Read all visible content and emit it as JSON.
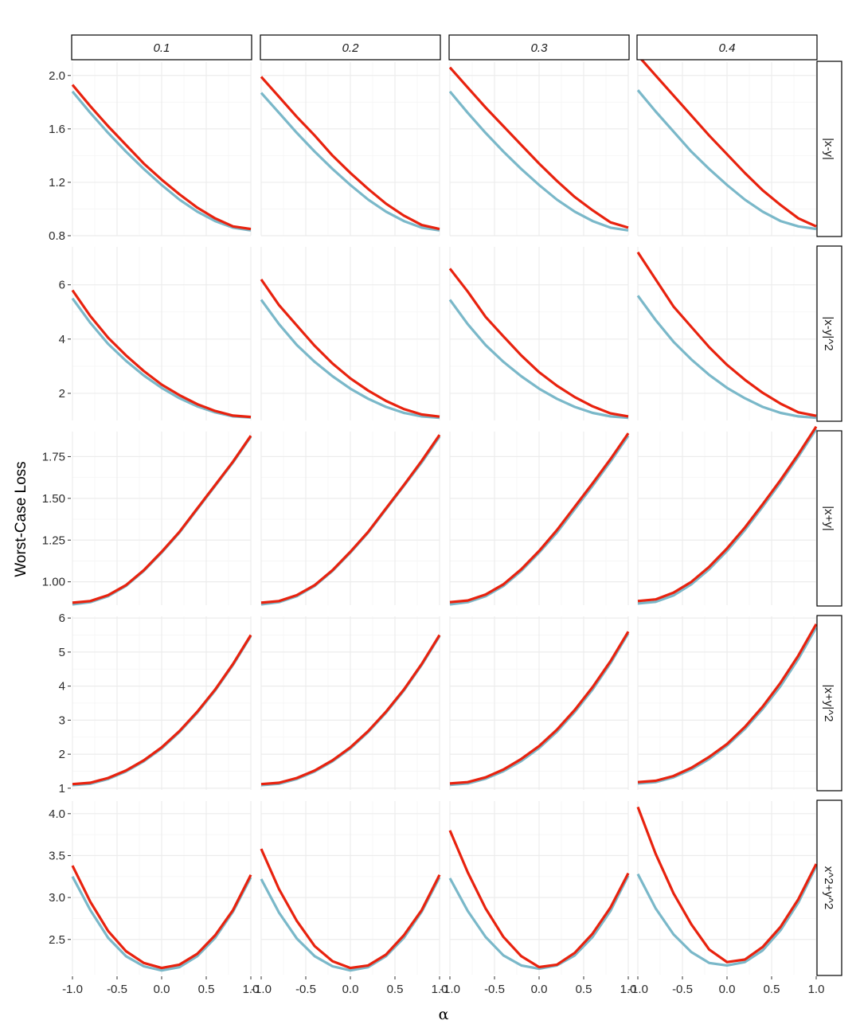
{
  "chart_data": {
    "type": "line",
    "facet_layout": "grid",
    "xlabel": "α",
    "ylabel": "Worst-Case Loss",
    "x": [
      -1.0,
      -0.8,
      -0.6,
      -0.4,
      -0.2,
      0.0,
      0.2,
      0.4,
      0.6,
      0.8,
      1.0
    ],
    "xlim": [
      -1.0,
      1.0
    ],
    "xticks": [
      -1.0,
      -0.5,
      0.0,
      0.5,
      1.0
    ],
    "xtick_labels": [
      "-1.0",
      "-0.5",
      "0.0",
      "0.5",
      "1.0"
    ],
    "colors": {
      "series_1": "#e8220e",
      "series_2": "#7ab8c9"
    },
    "columns": [
      "0.1",
      "0.2",
      "0.3",
      "0.4"
    ],
    "rows": [
      {
        "label": "|x-y|",
        "ylim": [
          0.8,
          2.1
        ],
        "yticks": [
          0.8,
          1.2,
          1.6,
          2.0
        ],
        "ytick_labels": [
          "0.8",
          "1.2",
          "1.6",
          "2.0"
        ],
        "panels": [
          {
            "column": "0.1",
            "series": [
              {
                "name": "series_1",
                "values": [
                  1.93,
                  1.77,
                  1.62,
                  1.48,
                  1.34,
                  1.22,
                  1.11,
                  1.01,
                  0.93,
                  0.87,
                  0.85
                ]
              },
              {
                "name": "series_2",
                "values": [
                  1.88,
                  1.72,
                  1.57,
                  1.43,
                  1.3,
                  1.18,
                  1.07,
                  0.98,
                  0.91,
                  0.86,
                  0.84
                ]
              }
            ]
          },
          {
            "column": "0.2",
            "series": [
              {
                "name": "series_1",
                "values": [
                  1.99,
                  1.84,
                  1.69,
                  1.55,
                  1.4,
                  1.27,
                  1.15,
                  1.04,
                  0.95,
                  0.88,
                  0.85
                ]
              },
              {
                "name": "series_2",
                "values": [
                  1.87,
                  1.72,
                  1.57,
                  1.43,
                  1.3,
                  1.18,
                  1.07,
                  0.98,
                  0.91,
                  0.86,
                  0.84
                ]
              }
            ]
          },
          {
            "column": "0.3",
            "series": [
              {
                "name": "series_1",
                "values": [
                  2.06,
                  1.91,
                  1.76,
                  1.62,
                  1.48,
                  1.34,
                  1.21,
                  1.09,
                  0.99,
                  0.9,
                  0.86
                ]
              },
              {
                "name": "series_2",
                "values": [
                  1.88,
                  1.72,
                  1.57,
                  1.43,
                  1.3,
                  1.18,
                  1.07,
                  0.98,
                  0.91,
                  0.86,
                  0.84
                ]
              }
            ]
          },
          {
            "column": "0.4",
            "series": [
              {
                "name": "series_1",
                "values": [
                  2.15,
                  2.0,
                  1.85,
                  1.7,
                  1.55,
                  1.41,
                  1.27,
                  1.14,
                  1.03,
                  0.93,
                  0.87
                ]
              },
              {
                "name": "series_2",
                "values": [
                  1.89,
                  1.73,
                  1.58,
                  1.43,
                  1.3,
                  1.18,
                  1.07,
                  0.98,
                  0.91,
                  0.87,
                  0.85
                ]
              }
            ]
          }
        ]
      },
      {
        "label": "|x-y|^2",
        "ylim": [
          1.0,
          7.4
        ],
        "yticks": [
          2,
          4,
          6
        ],
        "ytick_labels": [
          "2",
          "4",
          "6"
        ],
        "panels": [
          {
            "column": "0.1",
            "series": [
              {
                "name": "series_1",
                "values": [
                  5.8,
                  4.85,
                  4.05,
                  3.4,
                  2.82,
                  2.32,
                  1.93,
                  1.6,
                  1.35,
                  1.18,
                  1.13
                ]
              },
              {
                "name": "series_2",
                "values": [
                  5.5,
                  4.6,
                  3.82,
                  3.2,
                  2.66,
                  2.2,
                  1.82,
                  1.52,
                  1.3,
                  1.15,
                  1.11
                ]
              }
            ]
          },
          {
            "column": "0.2",
            "series": [
              {
                "name": "series_1",
                "values": [
                  6.2,
                  5.25,
                  4.5,
                  3.75,
                  3.1,
                  2.55,
                  2.1,
                  1.72,
                  1.42,
                  1.22,
                  1.14
                ]
              },
              {
                "name": "series_2",
                "values": [
                  5.45,
                  4.55,
                  3.78,
                  3.16,
                  2.63,
                  2.17,
                  1.8,
                  1.5,
                  1.28,
                  1.15,
                  1.1
                ]
              }
            ]
          },
          {
            "column": "0.3",
            "series": [
              {
                "name": "series_1",
                "values": [
                  6.6,
                  5.75,
                  4.82,
                  4.1,
                  3.4,
                  2.78,
                  2.28,
                  1.86,
                  1.52,
                  1.26,
                  1.15
                ]
              },
              {
                "name": "series_2",
                "values": [
                  5.45,
                  4.55,
                  3.78,
                  3.16,
                  2.63,
                  2.17,
                  1.8,
                  1.5,
                  1.28,
                  1.15,
                  1.1
                ]
              }
            ]
          },
          {
            "column": "0.4",
            "series": [
              {
                "name": "series_1",
                "values": [
                  7.2,
                  6.2,
                  5.2,
                  4.45,
                  3.7,
                  3.05,
                  2.5,
                  2.02,
                  1.62,
                  1.3,
                  1.17
                ]
              },
              {
                "name": "series_2",
                "values": [
                  5.6,
                  4.7,
                  3.9,
                  3.25,
                  2.68,
                  2.2,
                  1.82,
                  1.5,
                  1.28,
                  1.15,
                  1.1
                ]
              }
            ]
          }
        ]
      },
      {
        "label": "|x+y|",
        "ylim": [
          0.86,
          1.9
        ],
        "yticks": [
          1.0,
          1.25,
          1.5,
          1.75
        ],
        "ytick_labels": [
          "1.00",
          "1.25",
          "1.50",
          "1.75"
        ],
        "panels": [
          {
            "column": "0.1",
            "series": [
              {
                "name": "series_1",
                "values": [
                  0.875,
                  0.885,
                  0.92,
                  0.98,
                  1.07,
                  1.18,
                  1.3,
                  1.44,
                  1.58,
                  1.72,
                  1.875
                ]
              },
              {
                "name": "series_2",
                "values": [
                  0.865,
                  0.878,
                  0.914,
                  0.975,
                  1.065,
                  1.175,
                  1.295,
                  1.435,
                  1.575,
                  1.715,
                  1.87
                ]
              }
            ]
          },
          {
            "column": "0.2",
            "series": [
              {
                "name": "series_1",
                "values": [
                  0.875,
                  0.885,
                  0.92,
                  0.98,
                  1.07,
                  1.18,
                  1.3,
                  1.44,
                  1.58,
                  1.725,
                  1.88
                ]
              },
              {
                "name": "series_2",
                "values": [
                  0.865,
                  0.878,
                  0.914,
                  0.975,
                  1.065,
                  1.175,
                  1.295,
                  1.435,
                  1.575,
                  1.715,
                  1.87
                ]
              }
            ]
          },
          {
            "column": "0.3",
            "series": [
              {
                "name": "series_1",
                "values": [
                  0.878,
                  0.888,
                  0.924,
                  0.985,
                  1.075,
                  1.185,
                  1.31,
                  1.45,
                  1.59,
                  1.735,
                  1.89
                ]
              },
              {
                "name": "series_2",
                "values": [
                  0.865,
                  0.878,
                  0.914,
                  0.975,
                  1.065,
                  1.175,
                  1.295,
                  1.435,
                  1.575,
                  1.72,
                  1.875
                ]
              }
            ]
          },
          {
            "column": "0.4",
            "series": [
              {
                "name": "series_1",
                "values": [
                  0.885,
                  0.895,
                  0.935,
                  1.0,
                  1.09,
                  1.2,
                  1.325,
                  1.465,
                  1.61,
                  1.765,
                  1.93
                ]
              },
              {
                "name": "series_2",
                "values": [
                  0.87,
                  0.88,
                  0.918,
                  0.985,
                  1.075,
                  1.185,
                  1.31,
                  1.45,
                  1.595,
                  1.75,
                  1.915
                ]
              }
            ]
          }
        ]
      },
      {
        "label": "|x+y|^2",
        "ylim": [
          0.95,
          6.05
        ],
        "yticks": [
          1,
          2,
          3,
          4,
          5,
          6
        ],
        "ytick_labels": [
          "1",
          "2",
          "3",
          "4",
          "5",
          "6"
        ],
        "panels": [
          {
            "column": "0.1",
            "series": [
              {
                "name": "series_1",
                "values": [
                  1.12,
                  1.16,
                  1.3,
                  1.52,
                  1.82,
                  2.2,
                  2.68,
                  3.25,
                  3.9,
                  4.65,
                  5.5
                ]
              },
              {
                "name": "series_2",
                "values": [
                  1.09,
                  1.13,
                  1.27,
                  1.49,
                  1.79,
                  2.17,
                  2.65,
                  3.22,
                  3.87,
                  4.62,
                  5.47
                ]
              }
            ]
          },
          {
            "column": "0.2",
            "series": [
              {
                "name": "series_1",
                "values": [
                  1.12,
                  1.16,
                  1.3,
                  1.52,
                  1.82,
                  2.2,
                  2.68,
                  3.25,
                  3.9,
                  4.65,
                  5.5
                ]
              },
              {
                "name": "series_2",
                "values": [
                  1.09,
                  1.13,
                  1.27,
                  1.49,
                  1.79,
                  2.17,
                  2.65,
                  3.22,
                  3.87,
                  4.62,
                  5.47
                ]
              }
            ]
          },
          {
            "column": "0.3",
            "series": [
              {
                "name": "series_1",
                "values": [
                  1.14,
                  1.18,
                  1.32,
                  1.55,
                  1.86,
                  2.24,
                  2.72,
                  3.3,
                  3.97,
                  4.73,
                  5.6
                ]
              },
              {
                "name": "series_2",
                "values": [
                  1.1,
                  1.14,
                  1.28,
                  1.5,
                  1.8,
                  2.18,
                  2.66,
                  3.24,
                  3.9,
                  4.67,
                  5.55
                ]
              }
            ]
          },
          {
            "column": "0.4",
            "series": [
              {
                "name": "series_1",
                "values": [
                  1.18,
                  1.22,
                  1.36,
                  1.6,
                  1.92,
                  2.3,
                  2.8,
                  3.4,
                  4.1,
                  4.9,
                  5.82
                ]
              },
              {
                "name": "series_2",
                "values": [
                  1.14,
                  1.18,
                  1.32,
                  1.55,
                  1.86,
                  2.25,
                  2.74,
                  3.33,
                  4.0,
                  4.8,
                  5.72
                ]
              }
            ]
          }
        ]
      },
      {
        "label": "x^2+y^2",
        "ylim": [
          2.08,
          4.15
        ],
        "yticks": [
          2.5,
          3.0,
          3.5,
          4.0
        ],
        "ytick_labels": [
          "2.5",
          "3.0",
          "3.5",
          "4.0"
        ],
        "panels": [
          {
            "column": "0.1",
            "series": [
              {
                "name": "series_1",
                "values": [
                  3.38,
                  2.95,
                  2.6,
                  2.36,
                  2.22,
                  2.16,
                  2.2,
                  2.33,
                  2.55,
                  2.85,
                  3.27
                ]
              },
              {
                "name": "series_2",
                "values": [
                  3.25,
                  2.85,
                  2.52,
                  2.3,
                  2.18,
                  2.13,
                  2.17,
                  2.3,
                  2.52,
                  2.83,
                  3.24
                ]
              }
            ]
          },
          {
            "column": "0.2",
            "series": [
              {
                "name": "series_1",
                "values": [
                  3.58,
                  3.1,
                  2.72,
                  2.42,
                  2.24,
                  2.16,
                  2.19,
                  2.32,
                  2.55,
                  2.85,
                  3.27
                ]
              },
              {
                "name": "series_2",
                "values": [
                  3.22,
                  2.82,
                  2.51,
                  2.3,
                  2.18,
                  2.13,
                  2.17,
                  2.3,
                  2.52,
                  2.83,
                  3.24
                ]
              }
            ]
          },
          {
            "column": "0.3",
            "series": [
              {
                "name": "series_1",
                "values": [
                  3.8,
                  3.3,
                  2.87,
                  2.53,
                  2.3,
                  2.17,
                  2.2,
                  2.34,
                  2.57,
                  2.88,
                  3.29
                ]
              },
              {
                "name": "series_2",
                "values": [
                  3.23,
                  2.84,
                  2.53,
                  2.31,
                  2.19,
                  2.15,
                  2.19,
                  2.31,
                  2.53,
                  2.84,
                  3.26
                ]
              }
            ]
          },
          {
            "column": "0.4",
            "series": [
              {
                "name": "series_1",
                "values": [
                  4.08,
                  3.52,
                  3.05,
                  2.68,
                  2.38,
                  2.23,
                  2.26,
                  2.41,
                  2.65,
                  2.98,
                  3.4
                ]
              },
              {
                "name": "series_2",
                "values": [
                  3.28,
                  2.87,
                  2.56,
                  2.35,
                  2.22,
                  2.19,
                  2.23,
                  2.37,
                  2.61,
                  2.94,
                  3.37
                ]
              }
            ]
          }
        ]
      }
    ]
  }
}
